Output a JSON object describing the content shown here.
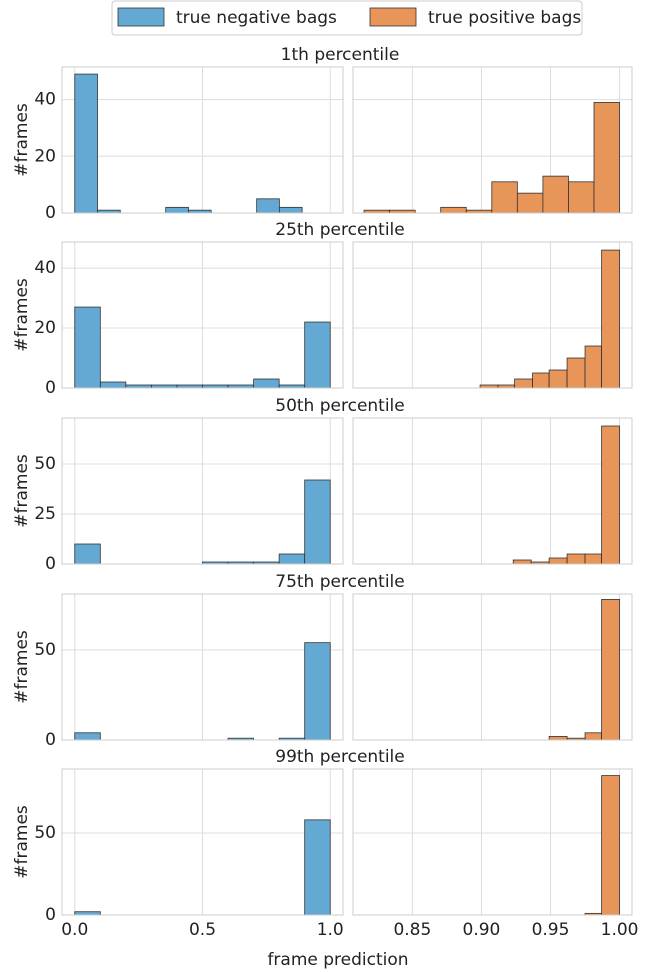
{
  "legend": [
    {
      "name": "true negative bags",
      "color": "#64a9d3"
    },
    {
      "name": "true positive bags",
      "color": "#e8955a"
    }
  ],
  "xlabel": "frame prediction",
  "chart_data": [
    {
      "type": "histogram",
      "title": "1th percentile",
      "ylabel": "#frames",
      "color": "#64a9d3",
      "bins": [
        0,
        0.089,
        0.178,
        0.267,
        0.356,
        0.445,
        0.534,
        0.623,
        0.712,
        0.801,
        0.89
      ],
      "values": [
        49,
        1,
        0,
        0,
        2,
        1,
        0,
        0,
        5,
        2
      ],
      "xlim": [
        -0.05,
        1.05
      ],
      "xticks": [
        0,
        0.5,
        1
      ],
      "ylim": [
        0,
        51.5
      ],
      "yticks": [
        0,
        20,
        40
      ],
      "grid": true
    },
    {
      "type": "histogram",
      "color": "#e8955a",
      "bins": [
        0.815,
        0.8335,
        0.852,
        0.8705,
        0.889,
        0.9075,
        0.926,
        0.9445,
        0.963,
        0.9815,
        1.0
      ],
      "values": [
        1,
        1,
        0,
        2,
        1,
        11,
        7,
        13,
        11,
        39
      ],
      "xlim": [
        0.807,
        1.009
      ],
      "xticks": [
        0.85,
        0.9,
        0.95,
        1.0
      ],
      "ylim": [
        0,
        51.5
      ],
      "yticks": [
        0,
        20,
        40
      ],
      "grid": true
    },
    {
      "type": "histogram",
      "title": "25th percentile",
      "ylabel": "#frames",
      "color": "#64a9d3",
      "bins": [
        0,
        0.1,
        0.2,
        0.3,
        0.4,
        0.5,
        0.6,
        0.7,
        0.8,
        0.9,
        1.0
      ],
      "values": [
        27,
        2,
        1,
        1,
        1,
        1,
        1,
        3,
        1,
        22
      ],
      "xlim": [
        -0.05,
        1.05
      ],
      "xticks": [
        0,
        0.5,
        1
      ],
      "ylim": [
        0,
        48.7
      ],
      "yticks": [
        0,
        20,
        40
      ],
      "grid": true
    },
    {
      "type": "histogram",
      "color": "#e8955a",
      "bins": [
        0.899,
        0.912,
        0.924,
        0.937,
        0.949,
        0.962,
        0.975,
        0.987,
        1.0
      ],
      "values": [
        1,
        1,
        3,
        5,
        6,
        10,
        14,
        46
      ],
      "xlim": [
        0.807,
        1.009
      ],
      "xticks": [
        0.85,
        0.9,
        0.95,
        1.0
      ],
      "ylim": [
        0,
        48.7
      ],
      "yticks": [
        0,
        20,
        40
      ],
      "grid": true
    },
    {
      "type": "histogram",
      "title": "50th percentile",
      "ylabel": "#frames",
      "color": "#64a9d3",
      "bins": [
        0,
        0.1,
        0.2,
        0.3,
        0.4,
        0.5,
        0.6,
        0.7,
        0.8,
        0.9,
        1.0
      ],
      "values": [
        10,
        0,
        0,
        0,
        0,
        1,
        1,
        1,
        5,
        42
      ],
      "xlim": [
        -0.05,
        1.05
      ],
      "xticks": [
        0,
        0.5,
        1
      ],
      "ylim": [
        0,
        73
      ],
      "yticks": [
        0,
        25,
        50
      ],
      "grid": true
    },
    {
      "type": "histogram",
      "color": "#e8955a",
      "bins": [
        0.923,
        0.936,
        0.949,
        0.962,
        0.975,
        0.987,
        1.0
      ],
      "values": [
        2,
        1,
        3,
        5,
        5,
        69
      ],
      "xlim": [
        0.807,
        1.009
      ],
      "xticks": [
        0.85,
        0.9,
        0.95,
        1.0
      ],
      "ylim": [
        0,
        73
      ],
      "yticks": [
        0,
        25,
        50
      ],
      "grid": true
    },
    {
      "type": "histogram",
      "title": "75th percentile",
      "ylabel": "#frames",
      "color": "#64a9d3",
      "bins": [
        0,
        0.1,
        0.2,
        0.3,
        0.4,
        0.5,
        0.6,
        0.7,
        0.8,
        0.9,
        1.0
      ],
      "values": [
        4,
        0,
        0,
        0,
        0,
        0,
        1,
        0,
        1,
        54
      ],
      "xlim": [
        -0.05,
        1.05
      ],
      "xticks": [
        0,
        0.5,
        1
      ],
      "ylim": [
        0,
        81
      ],
      "yticks": [
        0,
        50
      ],
      "grid": true
    },
    {
      "type": "histogram",
      "color": "#e8955a",
      "bins": [
        0.949,
        0.962,
        0.975,
        0.987,
        1.0
      ],
      "values": [
        2,
        1,
        4,
        78
      ],
      "xlim": [
        0.807,
        1.009
      ],
      "xticks": [
        0.85,
        0.9,
        0.95,
        1.0
      ],
      "ylim": [
        0,
        81
      ],
      "yticks": [
        0,
        50
      ],
      "grid": true
    },
    {
      "type": "histogram",
      "title": "99th percentile",
      "ylabel": "#frames",
      "color": "#64a9d3",
      "bins": [
        0,
        0.1,
        0.2,
        0.3,
        0.4,
        0.5,
        0.6,
        0.7,
        0.8,
        0.9,
        1.0
      ],
      "values": [
        2,
        0,
        0,
        0,
        0,
        0,
        0,
        0,
        0,
        58
      ],
      "xlim": [
        -0.05,
        1.05
      ],
      "xticks": [
        {
          "value": 0,
          "label": "0.0"
        },
        {
          "value": 0.5,
          "label": "0.5"
        },
        {
          "value": 1,
          "label": "1.0"
        }
      ],
      "ylim": [
        0,
        89
      ],
      "yticks": [
        0,
        50
      ],
      "grid": true
    },
    {
      "type": "histogram",
      "color": "#e8955a",
      "bins": [
        0.975,
        0.987,
        1.0
      ],
      "values": [
        1,
        85
      ],
      "xlim": [
        0.807,
        1.009
      ],
      "xticks": [
        0.85,
        {
          "value": 0.9,
          "label": "0.90"
        },
        0.95,
        {
          "value": 1.0,
          "label": "1.00"
        }
      ],
      "ylim": [
        0,
        89
      ],
      "yticks": [
        0,
        50
      ],
      "grid": true
    }
  ]
}
